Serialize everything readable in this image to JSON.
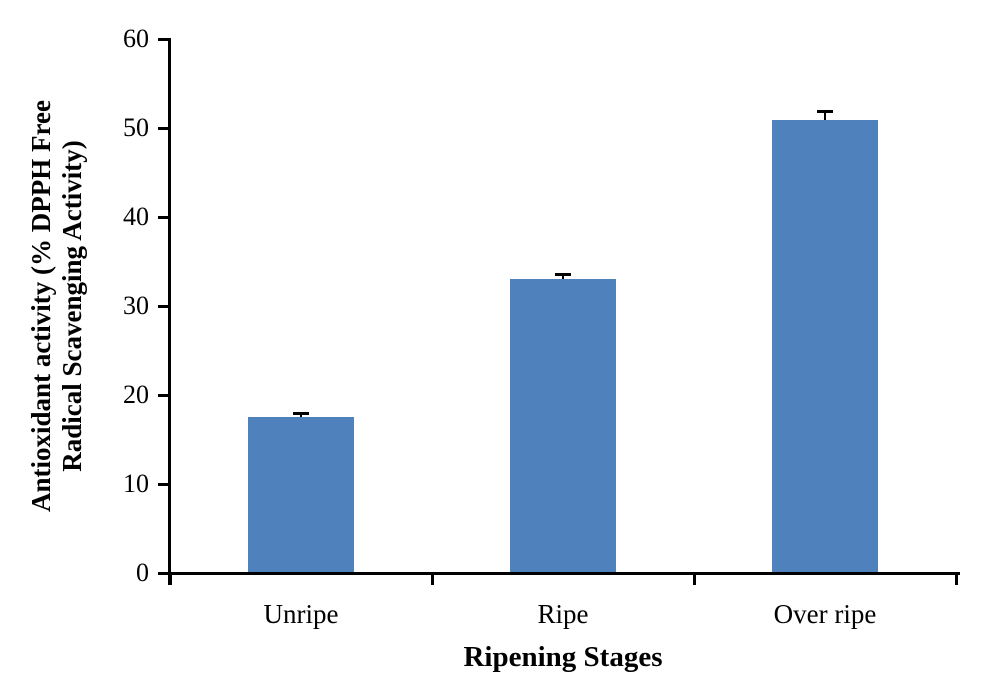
{
  "chart_data": {
    "type": "bar",
    "categories": [
      "Unripe",
      "Ripe",
      "Over ripe"
    ],
    "values": [
      17.5,
      33.0,
      50.9
    ],
    "error_bars": [
      0.3,
      0.35,
      0.8
    ],
    "title": "",
    "xlabel": "Ripening Stages",
    "ylabel": "Antioxidant activity (% DPPH Free Radical Scavenging Activity)",
    "ylabel_line1": "Antioxidant activity (% DPPH Free",
    "ylabel_line2": "Radical Scavenging Activity)",
    "ylim": [
      0,
      60
    ],
    "yticks": [
      0,
      10,
      20,
      30,
      40,
      50,
      60
    ],
    "grid": false,
    "legend_position": "none",
    "bar_color": "#4F81BD",
    "axis_color": "#000000"
  }
}
